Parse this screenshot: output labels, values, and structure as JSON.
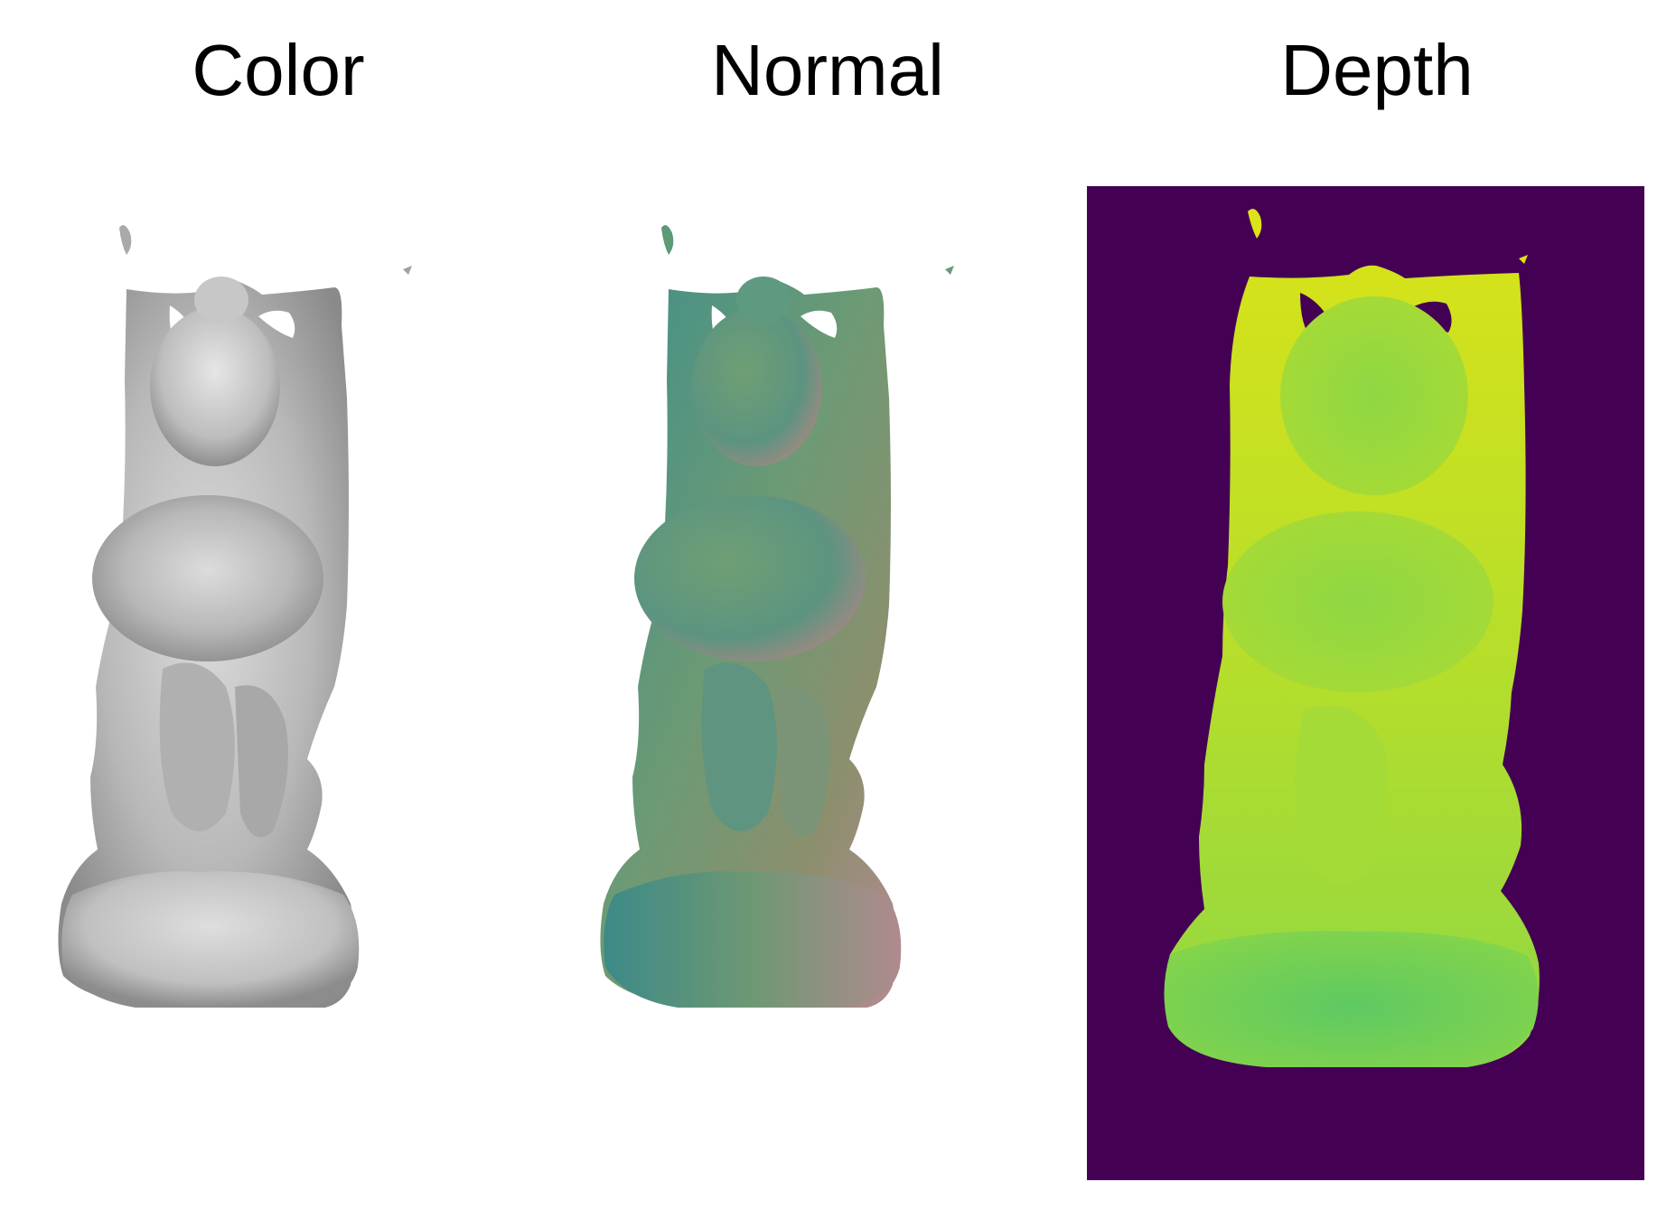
{
  "panels": [
    {
      "title": "Color",
      "render": "shaded-gray-statue",
      "background": "#ffffff"
    },
    {
      "title": "Normal",
      "render": "normal-map-statue",
      "background": "#ffffff"
    },
    {
      "title": "Depth",
      "render": "depth-map-statue",
      "background": "#440154"
    }
  ],
  "colors": {
    "gray_light": "#d9d9d9",
    "gray_dark": "#7f7f7f",
    "normal_teal": "#4f8f86",
    "normal_pink": "#b78a9a",
    "depth_bg": "#440154",
    "depth_yellow": "#dde318",
    "depth_green": "#7ad151",
    "depth_mid": "#a8db34"
  }
}
